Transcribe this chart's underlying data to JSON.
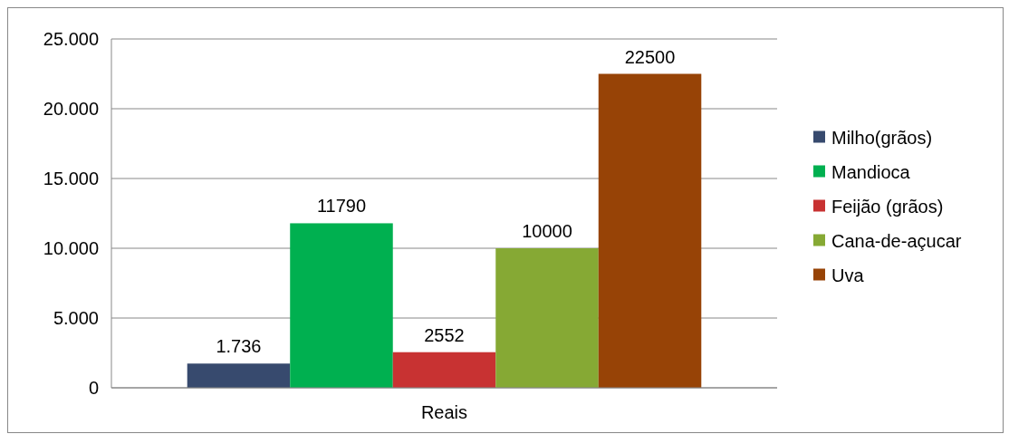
{
  "chart_data": {
    "type": "bar",
    "categories": [
      "Reais"
    ],
    "series": [
      {
        "name": "Milho(grãos)",
        "color": "#374a6e",
        "values": [
          1736
        ],
        "value_labels": [
          "1.736"
        ]
      },
      {
        "name": "Mandioca",
        "color": "#00b050",
        "values": [
          11790
        ],
        "value_labels": [
          "11790"
        ]
      },
      {
        "name": "Feijão (grãos)",
        "color": "#c83232",
        "values": [
          2552
        ],
        "value_labels": [
          "2552"
        ]
      },
      {
        "name": "Cana-de-açucar",
        "color": "#86a934",
        "values": [
          10000
        ],
        "value_labels": [
          "10000"
        ]
      },
      {
        "name": "Uva",
        "color": "#974306",
        "values": [
          22500
        ],
        "value_labels": [
          "22500"
        ]
      }
    ],
    "ylim": [
      0,
      25000
    ],
    "yticks": [
      {
        "value": 0,
        "label": "0"
      },
      {
        "value": 5000,
        "label": "5.000"
      },
      {
        "value": 10000,
        "label": "10.000"
      },
      {
        "value": 15000,
        "label": "15.000"
      },
      {
        "value": 20000,
        "label": "20.000"
      },
      {
        "value": 25000,
        "label": "25.000"
      }
    ],
    "grid": "y",
    "legend": "right"
  }
}
